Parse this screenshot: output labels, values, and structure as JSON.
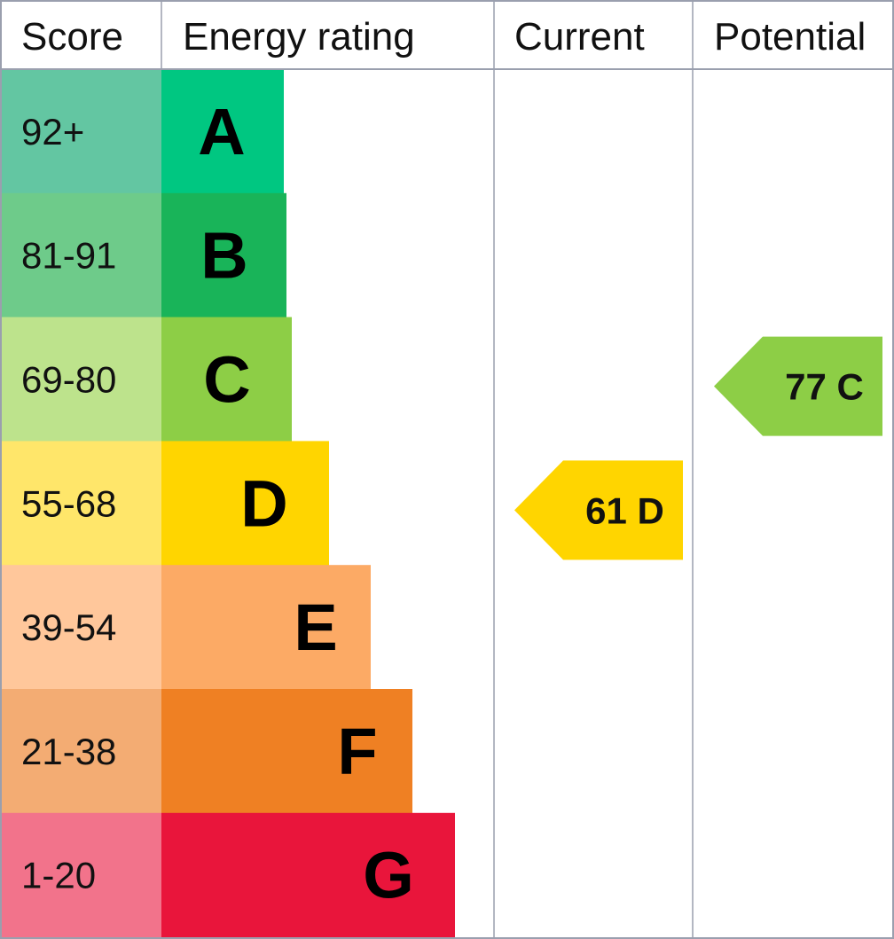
{
  "headers": {
    "score": "Score",
    "rating": "Energy rating",
    "current": "Current",
    "potential": "Potential"
  },
  "chart_data": {
    "type": "bar",
    "title": "",
    "categories": [
      "A",
      "B",
      "C",
      "D",
      "E",
      "F",
      "G"
    ],
    "bands": [
      {
        "letter": "A",
        "range": "92+",
        "score_color": "#63c6a2",
        "color": "#00c781"
      },
      {
        "letter": "B",
        "range": "81-91",
        "score_color": "#6ecb8a",
        "color": "#19b459"
      },
      {
        "letter": "C",
        "range": "69-80",
        "score_color": "#bde38c",
        "color": "#8dce46"
      },
      {
        "letter": "D",
        "range": "55-68",
        "score_color": "#ffe66a",
        "color": "#ffd500"
      },
      {
        "letter": "E",
        "range": "39-54",
        "score_color": "#ffc79b",
        "color": "#fcaa65"
      },
      {
        "letter": "F",
        "range": "21-38",
        "score_color": "#f3ac73",
        "color": "#ef8023"
      },
      {
        "letter": "G",
        "range": "1-20",
        "score_color": "#f2738b",
        "color": "#e9153b"
      }
    ],
    "current": {
      "value": 61,
      "band": "D",
      "label": "61 D",
      "color": "#ffd500"
    },
    "potential": {
      "value": 77,
      "band": "C",
      "label": "77 C",
      "color": "#8dce46"
    }
  }
}
